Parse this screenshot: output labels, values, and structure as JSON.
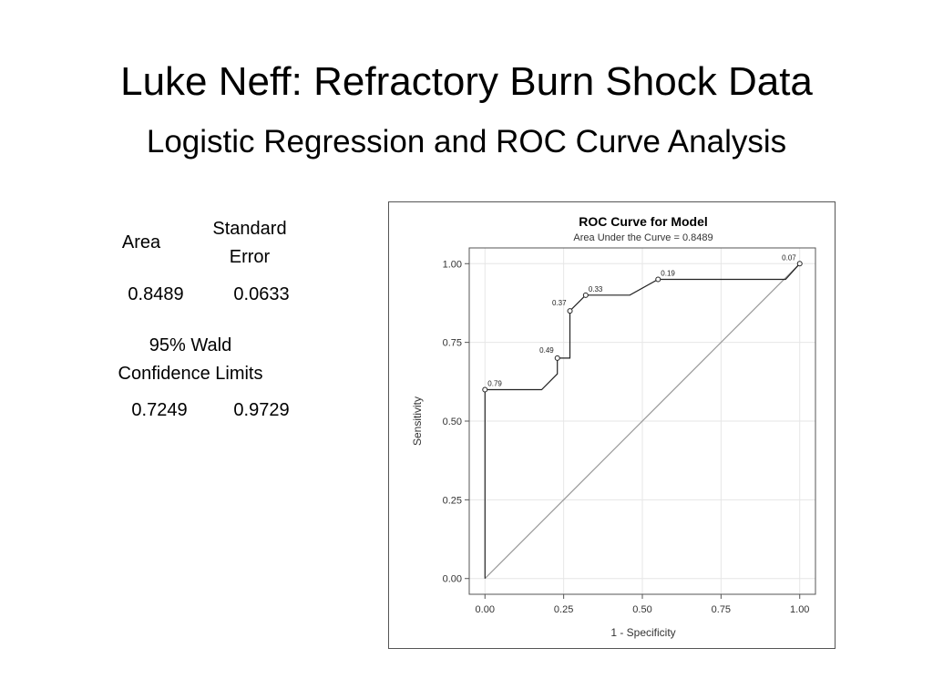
{
  "slide": {
    "title": "Luke Neff: Refractory Burn Shock Data",
    "subtitle": "Logistic Regression and ROC Curve Analysis"
  },
  "stats": {
    "area_header": "Area",
    "se_header_line1": "Standard",
    "se_header_line2": "Error",
    "area_value": "0.8489",
    "se_value": "0.0633",
    "ci_header_line1": "95% Wald",
    "ci_header_line2": "Confidence Limits",
    "ci_lower": "0.7249",
    "ci_upper": "0.9729"
  },
  "chart_data": {
    "type": "line",
    "title": "ROC Curve for Model",
    "subtitle": "Area Under the Curve = 0.8489",
    "xlabel": "1 - Specificity",
    "ylabel": "Sensitivity",
    "xlim": [
      -0.05,
      1.05
    ],
    "ylim": [
      -0.05,
      1.05
    ],
    "xticks": [
      0.0,
      0.25,
      0.5,
      0.75,
      1.0
    ],
    "yticks": [
      0.0,
      0.25,
      0.5,
      0.75,
      1.0
    ],
    "xtick_labels": [
      "0.00",
      "0.25",
      "0.50",
      "0.75",
      "1.00"
    ],
    "ytick_labels": [
      "0.00",
      "0.25",
      "0.50",
      "0.75",
      "1.00"
    ],
    "grid": true,
    "reference_line": [
      [
        0,
        0
      ],
      [
        1,
        1
      ]
    ],
    "roc_curve": {
      "x": [
        0.0,
        0.0,
        0.0,
        0.18,
        0.23,
        0.23,
        0.23,
        0.27,
        0.27,
        0.32,
        0.46,
        0.55,
        0.55,
        0.955,
        1.0,
        1.0
      ],
      "y": [
        0.0,
        0.6,
        0.6,
        0.6,
        0.65,
        0.7,
        0.7,
        0.7,
        0.85,
        0.9,
        0.9,
        0.95,
        0.95,
        0.95,
        1.0,
        1.0
      ]
    },
    "markers": [
      {
        "x": 0.0,
        "y": 0.6,
        "label": "0.79"
      },
      {
        "x": 0.23,
        "y": 0.7,
        "label": "0.49"
      },
      {
        "x": 0.27,
        "y": 0.85,
        "label": "0.37"
      },
      {
        "x": 0.32,
        "y": 0.9,
        "label": "0.33"
      },
      {
        "x": 0.55,
        "y": 0.95,
        "label": "0.19"
      },
      {
        "x": 1.0,
        "y": 1.0,
        "label": "0.07"
      }
    ]
  }
}
